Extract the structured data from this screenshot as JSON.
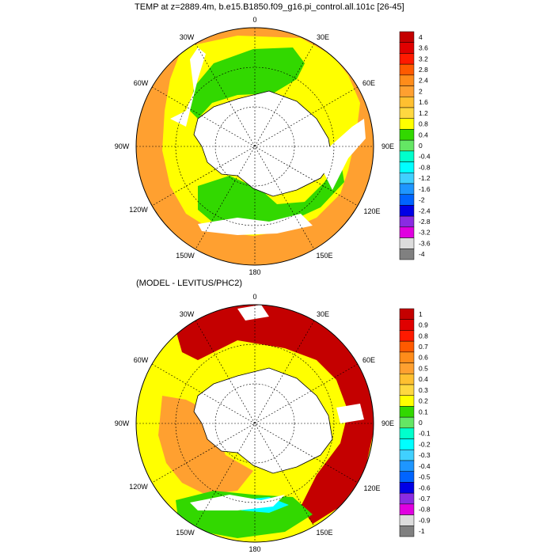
{
  "panels": [
    {
      "title": "TEMP at z=2889.4m, b.e15.B1850.f09_g16.pi_control.all.101c [26-45]",
      "longitude_labels": {
        "0": "0",
        "30E": "30E",
        "60E": "60E",
        "90E": "90E",
        "120E": "120E",
        "150E": "150E",
        "180": "180",
        "150W": "150W",
        "120W": "120W",
        "90W": "90W",
        "60W": "60W",
        "30W": "30W"
      },
      "colorbar": {
        "labels": [
          "4",
          "3.6",
          "3.2",
          "2.8",
          "2.4",
          "2",
          "1.6",
          "1.2",
          "0.8",
          "0.4",
          "0",
          "-0.4",
          "-0.8",
          "-1.2",
          "-1.6",
          "-2",
          "-2.4",
          "-2.8",
          "-3.2",
          "-3.6",
          "-4"
        ],
        "colors": [
          "#c40000",
          "#e00000",
          "#ff1a00",
          "#ff5a00",
          "#ff8c1a",
          "#ffa030",
          "#ffc030",
          "#ffd840",
          "#ffff00",
          "#32d800",
          "#64e664",
          "#00ffcc",
          "#00ffff",
          "#40d0ff",
          "#1e96ff",
          "#0064ff",
          "#0000e6",
          "#8a2be2",
          "#e000e0",
          "#dcdcdc",
          "#808080"
        ]
      },
      "regions": {
        "yellow": "#ffff00",
        "orange": "#ffa030",
        "green": "#32d800",
        "white": "#ffffff"
      }
    },
    {
      "title": "(MODEL - LEVITUS/PHC2)",
      "longitude_labels": {
        "0": "0",
        "30E": "30E",
        "60E": "60E",
        "90E": "90E",
        "120E": "120E",
        "150E": "150E",
        "180": "180",
        "150W": "150W",
        "120W": "120W",
        "90W": "90W",
        "60W": "60W",
        "30W": "30W"
      },
      "colorbar": {
        "labels": [
          "1",
          "0.9",
          "0.8",
          "0.7",
          "0.6",
          "0.5",
          "0.4",
          "0.3",
          "0.2",
          "0.1",
          "0",
          "-0.1",
          "-0.2",
          "-0.3",
          "-0.4",
          "-0.5",
          "-0.6",
          "-0.7",
          "-0.8",
          "-0.9",
          "-1"
        ],
        "colors": [
          "#c40000",
          "#e00000",
          "#ff1a00",
          "#ff5a00",
          "#ff8c1a",
          "#ffa030",
          "#ffc030",
          "#ffd840",
          "#ffff00",
          "#32d800",
          "#64e664",
          "#00ffcc",
          "#00ffff",
          "#40d0ff",
          "#1e96ff",
          "#0064ff",
          "#0000e6",
          "#8a2be2",
          "#e000e0",
          "#dcdcdc",
          "#808080"
        ]
      },
      "regions": {
        "red": "#c40000",
        "orange": "#ffa030",
        "yellow": "#ffff00",
        "green": "#32d800",
        "cyan": "#00ffff",
        "white": "#ffffff"
      }
    }
  ]
}
